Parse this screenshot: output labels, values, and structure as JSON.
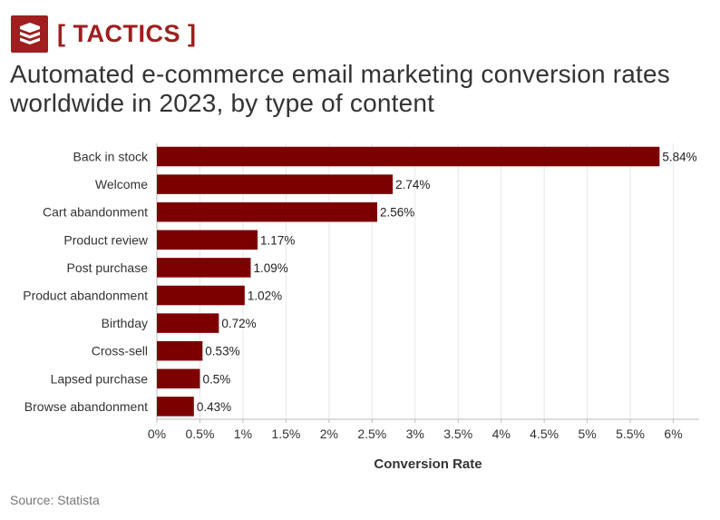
{
  "brand": {
    "name": "[ TACTICS ]",
    "icon": "stacked-layers-icon",
    "color": "#a01e1e"
  },
  "title_lines": [
    "Automated e-commerce email marketing conversion rates",
    "worldwide in 2023, by type of content"
  ],
  "source": "Source: Statista",
  "chart_data": {
    "type": "bar",
    "orientation": "horizontal",
    "title": "Automated e-commerce email marketing conversion rates worldwide in 2023, by type of content",
    "xlabel": "Conversion Rate",
    "ylabel": "",
    "categories": [
      "Back in stock",
      "Welcome",
      "Cart abandonment",
      "Product review",
      "Post purchase",
      "Product abandonment",
      "Birthday",
      "Cross-sell",
      "Lapsed purchase",
      "Browse abandonment"
    ],
    "values": [
      5.84,
      2.74,
      2.56,
      1.17,
      1.09,
      1.02,
      0.72,
      0.53,
      0.5,
      0.43
    ],
    "value_labels": [
      "5.84%",
      "2.74%",
      "2.56%",
      "1.17%",
      "1.09%",
      "1.02%",
      "0.72%",
      "0.53%",
      "0.5%",
      "0.43%"
    ],
    "xlim": [
      0,
      6.3
    ],
    "xticks": [
      0,
      0.5,
      1,
      1.5,
      2,
      2.5,
      3,
      3.5,
      4,
      4.5,
      5,
      5.5,
      6
    ],
    "xtick_labels": [
      "0%",
      "0.5%",
      "1%",
      "1.5%",
      "2%",
      "2.5%",
      "3%",
      "3.5%",
      "4%",
      "4.5%",
      "5%",
      "5.5%",
      "6%"
    ],
    "grid": "vertical",
    "bar_color": "#7d0000"
  }
}
